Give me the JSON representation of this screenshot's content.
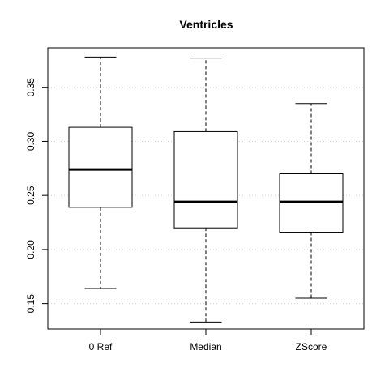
{
  "chart_data": {
    "type": "boxplot",
    "title": "Ventricles",
    "xlabel": "",
    "ylabel": "",
    "categories": [
      "0 Ref",
      "Median",
      "ZScore"
    ],
    "boxes": [
      {
        "category": "0 Ref",
        "whisker_low": 0.164,
        "q1": 0.239,
        "median": 0.274,
        "q3": 0.313,
        "whisker_high": 0.378
      },
      {
        "category": "Median",
        "whisker_low": 0.133,
        "q1": 0.22,
        "median": 0.244,
        "q3": 0.309,
        "whisker_high": 0.377
      },
      {
        "category": "ZScore",
        "whisker_low": 0.155,
        "q1": 0.216,
        "median": 0.244,
        "q3": 0.27,
        "whisker_high": 0.335
      }
    ],
    "yticks": [
      0.15,
      0.2,
      0.25,
      0.3,
      0.35
    ],
    "ytick_labels": [
      "0.15",
      "0.20",
      "0.25",
      "0.30",
      "0.35"
    ],
    "ylim": [
      0.1265,
      0.3865
    ],
    "grid": true
  }
}
